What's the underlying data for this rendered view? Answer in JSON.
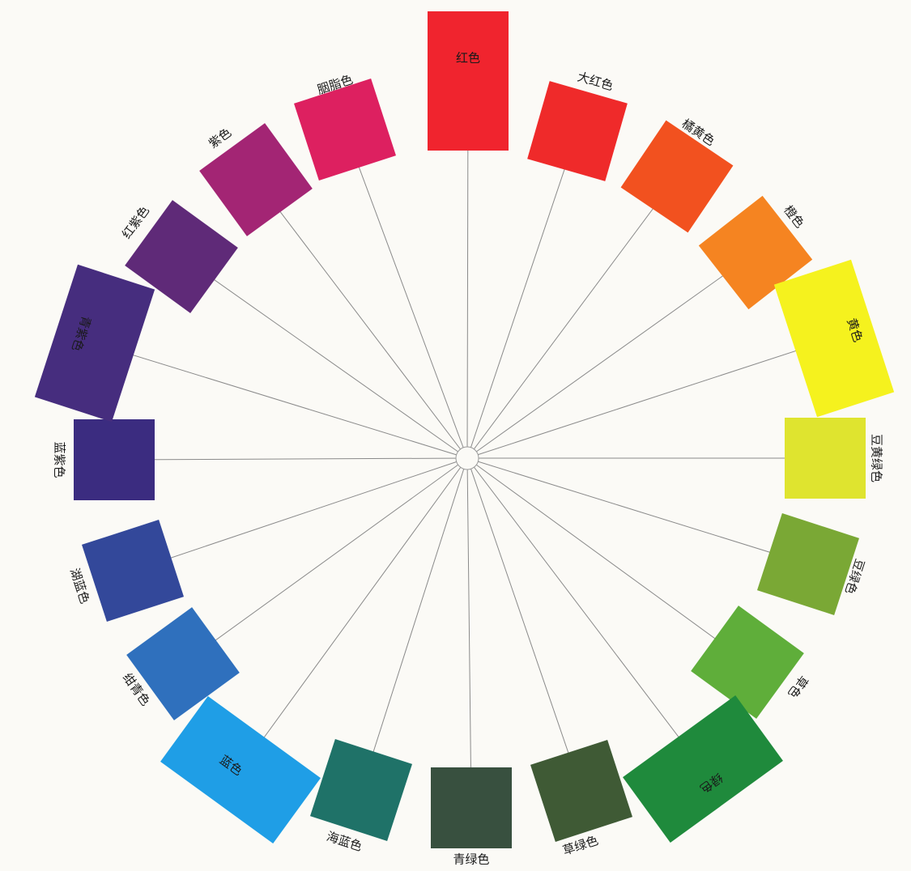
{
  "colors": [
    {
      "label": "红色",
      "color": "#f0242e"
    },
    {
      "label": "大红色",
      "color": "#ef2a2a"
    },
    {
      "label": "橘黄色",
      "color": "#f2511f"
    },
    {
      "label": "橙色",
      "color": "#f58421"
    },
    {
      "label": "黄色",
      "color": "#f5f21e"
    },
    {
      "label": "豆黄绿色",
      "color": "#dfe42f"
    },
    {
      "label": "豆绿色",
      "color": "#7aa835"
    },
    {
      "label": "草色",
      "color": "#5fae3a"
    },
    {
      "label": "绿色",
      "color": "#1f8a3c"
    },
    {
      "label": "草绿色",
      "color": "#3f5a35"
    },
    {
      "label": "青绿色",
      "color": "#38503f"
    },
    {
      "label": "海蓝色",
      "color": "#1f7268"
    },
    {
      "label": "蓝色",
      "color": "#1f9ee6"
    },
    {
      "label": "绀青色",
      "color": "#2f70bd"
    },
    {
      "label": "湖蓝色",
      "color": "#33489a"
    },
    {
      "label": "蓝紫色",
      "color": "#3b2c80"
    },
    {
      "label": "青紫色",
      "color": "#462d7e"
    },
    {
      "label": "红紫色",
      "color": "#5f2a78"
    },
    {
      "label": "紫色",
      "color": "#a32574"
    },
    {
      "label": "胭脂色",
      "color": "#dd2060"
    }
  ]
}
